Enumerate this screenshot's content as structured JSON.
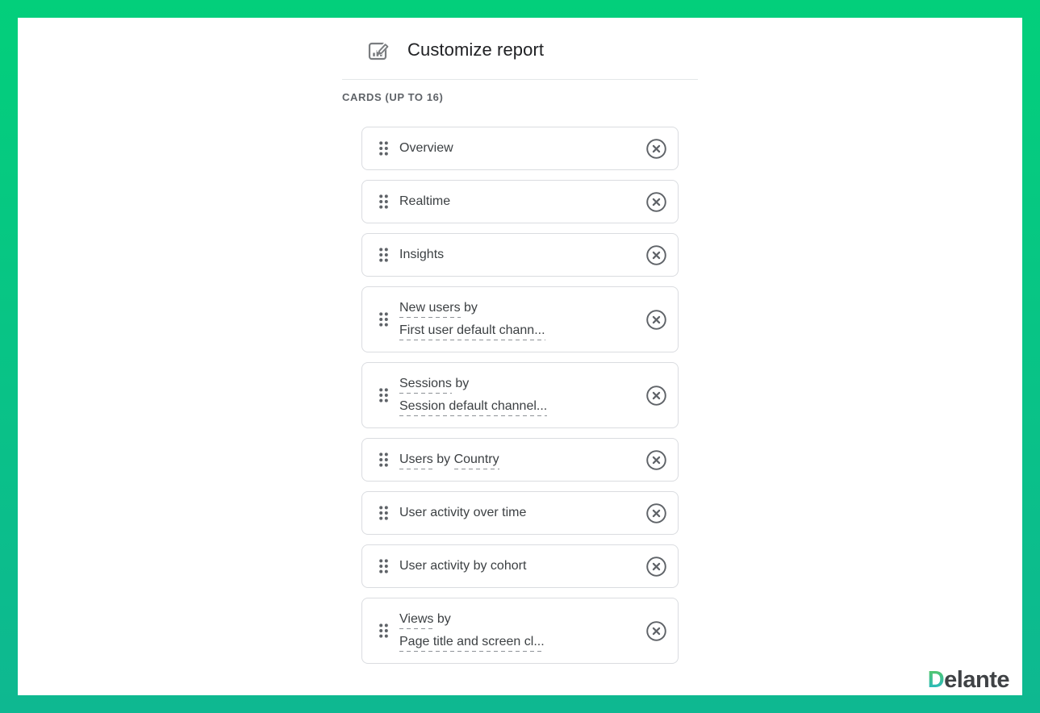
{
  "colors": {
    "frame_gradient_top": "#03cf7b",
    "frame_gradient_bottom": "#0eb891",
    "card_border": "#dadce0",
    "icon_gray": "#5f6368",
    "logo_gradient_top": "#52c66d",
    "logo_gradient_bottom": "#25b9c3"
  },
  "header": {
    "icon": "customize-report-icon",
    "title": "Customize report"
  },
  "cards_section": {
    "label": "CARDS (UP TO 16)"
  },
  "cards": [
    {
      "lines": [
        [
          {
            "text": "Overview",
            "dashed": false
          }
        ]
      ]
    },
    {
      "lines": [
        [
          {
            "text": "Realtime",
            "dashed": false
          }
        ]
      ]
    },
    {
      "lines": [
        [
          {
            "text": "Insights",
            "dashed": false
          }
        ]
      ]
    },
    {
      "lines": [
        [
          {
            "text": "New users",
            "dashed": true
          },
          {
            "text": " by",
            "dashed": false
          }
        ],
        [
          {
            "text": "First user default chann...",
            "dashed": true
          }
        ]
      ]
    },
    {
      "lines": [
        [
          {
            "text": "Sessions",
            "dashed": true
          },
          {
            "text": " by",
            "dashed": false
          }
        ],
        [
          {
            "text": "Session default channel...",
            "dashed": true
          }
        ]
      ]
    },
    {
      "lines": [
        [
          {
            "text": "Users",
            "dashed": true
          },
          {
            "text": " by ",
            "dashed": false
          },
          {
            "text": "Country",
            "dashed": true
          }
        ]
      ]
    },
    {
      "lines": [
        [
          {
            "text": "User activity over time",
            "dashed": false
          }
        ]
      ]
    },
    {
      "lines": [
        [
          {
            "text": "User activity by cohort",
            "dashed": false
          }
        ]
      ]
    },
    {
      "lines": [
        [
          {
            "text": "Views",
            "dashed": true
          },
          {
            "text": " by",
            "dashed": false
          }
        ],
        [
          {
            "text": "Page title and screen cl...",
            "dashed": true
          }
        ]
      ]
    }
  ],
  "watermark": {
    "brand_first_letter": "D",
    "brand_rest": "elante"
  }
}
